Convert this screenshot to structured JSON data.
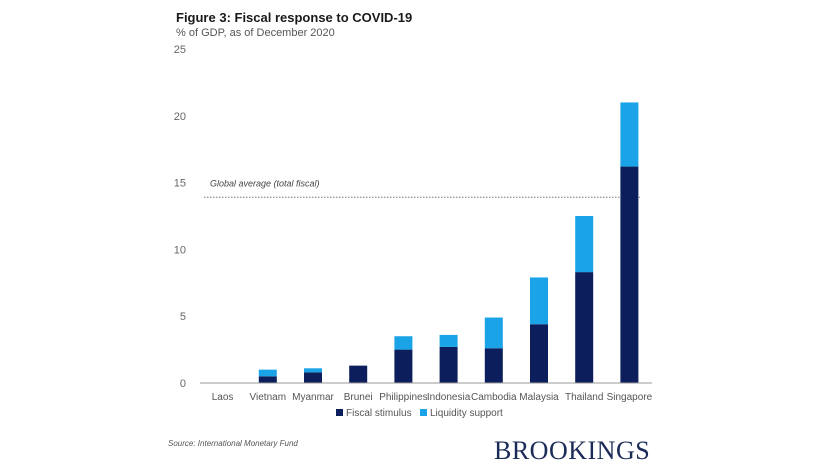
{
  "title": "Figure 3: Fiscal response to COVID-19",
  "subtitle": "% of GDP, as of December 2020",
  "source": "Source: International Monetary Fund",
  "brand": "BROOKINGS",
  "colors": {
    "fiscal_stimulus": "#0c1f5c",
    "liquidity_support": "#1aa3e6",
    "axis": "#999999",
    "reference_line": "#777777"
  },
  "chart_data": {
    "type": "bar",
    "stacked": true,
    "categories": [
      "Laos",
      "Vietnam",
      "Myanmar",
      "Brunei",
      "Philippines",
      "Indonesia",
      "Cambodia",
      "Malaysia",
      "Thailand",
      "Singapore"
    ],
    "series": [
      {
        "name": "Fiscal stimulus",
        "values": [
          0,
          0.5,
          0.8,
          1.3,
          2.5,
          2.7,
          2.6,
          4.4,
          8.3,
          16.2
        ]
      },
      {
        "name": "Liquidity support",
        "values": [
          0,
          0.5,
          0.3,
          0,
          1.0,
          0.9,
          2.3,
          3.5,
          4.2,
          4.8
        ]
      }
    ],
    "ylim": [
      0,
      25
    ],
    "yticks": [
      "0",
      "5",
      "10",
      "15",
      "20",
      "25"
    ],
    "grid": false,
    "legend": "bottom",
    "reference_line": {
      "value": 13.9,
      "label": "Global average (total fiscal)"
    }
  }
}
